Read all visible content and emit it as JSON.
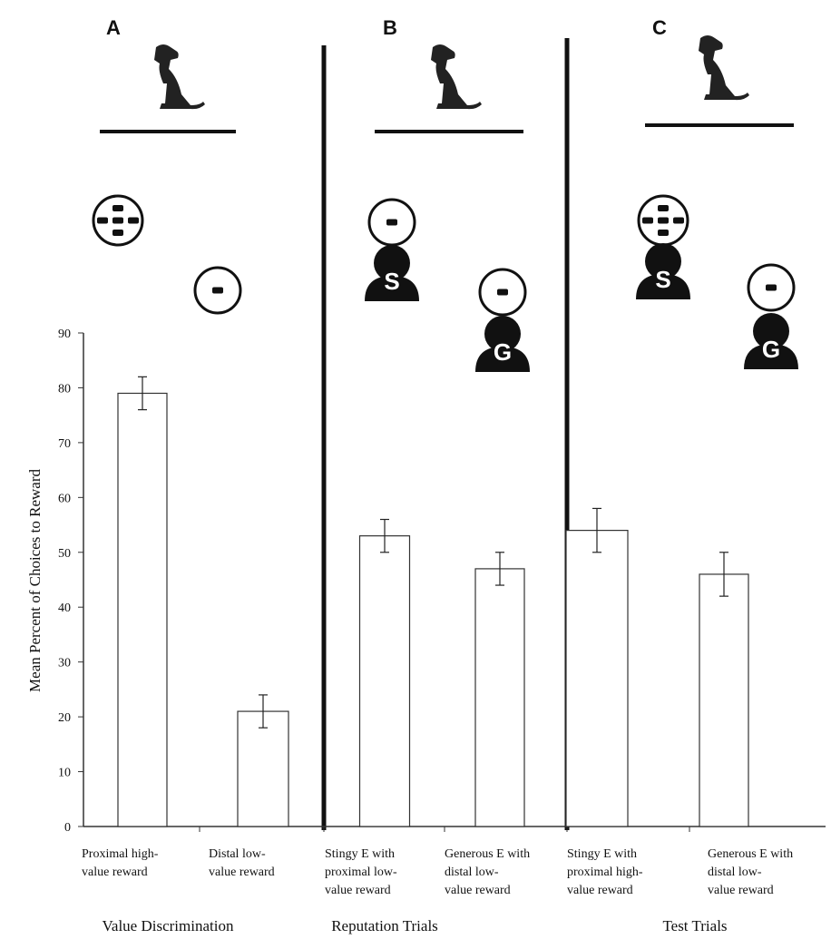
{
  "chart_data": {
    "type": "bar",
    "y_label": "Mean Percent of Choices to Reward",
    "panel_labels": [
      "A",
      "B",
      "C"
    ],
    "experimenter_labels": [
      "S",
      "G",
      "S",
      "G"
    ],
    "categories": [
      [
        "Proximal high-",
        "value reward"
      ],
      [
        "Distal low-",
        "value reward"
      ],
      [
        "Stingy E with",
        "proximal low-",
        "value reward"
      ],
      [
        "Generous E with",
        "distal low-",
        "value reward"
      ],
      [
        "Stingy E with",
        "proximal high-",
        "value reward"
      ],
      [
        "Generous E with",
        "distal low-",
        "value reward"
      ]
    ],
    "group_labels": [
      "Value Discrimination",
      "Reputation Trials",
      "Test Trials"
    ],
    "values": [
      79,
      21,
      53,
      47,
      54,
      46
    ],
    "errors": [
      3,
      3,
      3,
      3,
      4,
      4
    ],
    "color": "#ffffff",
    "ylim": [
      0,
      90
    ],
    "yticks": [
      0,
      10,
      20,
      30,
      40,
      50,
      60,
      70,
      80,
      90
    ],
    "grid": false
  }
}
